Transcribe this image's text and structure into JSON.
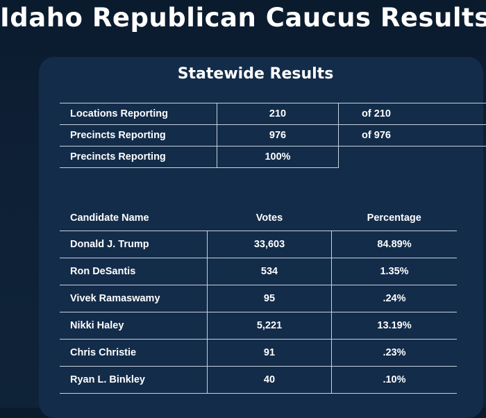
{
  "page_title": "Idaho Republican Caucus Results",
  "card_title": "Statewide Results",
  "reporting": [
    {
      "label": "Locations Reporting",
      "value": "210",
      "of": "of 210"
    },
    {
      "label": "Precincts Reporting",
      "value": "976",
      "of": "of 976"
    },
    {
      "label": "Precincts Reporting",
      "value": "100%",
      "of": ""
    }
  ],
  "candidates_header": {
    "name": "Candidate Name",
    "votes": "Votes",
    "percentage": "Percentage"
  },
  "candidates": [
    {
      "name": "Donald J. Trump",
      "votes": "33,603",
      "percentage": "84.89%"
    },
    {
      "name": "Ron DeSantis",
      "votes": "534",
      "percentage": "1.35%"
    },
    {
      "name": "Vivek Ramaswamy",
      "votes": "95",
      "percentage": ".24%"
    },
    {
      "name": "Nikki Haley",
      "votes": "5,221",
      "percentage": "13.19%"
    },
    {
      "name": "Chris Christie",
      "votes": "91",
      "percentage": ".23%"
    },
    {
      "name": "Ryan L. Binkley",
      "votes": "40",
      "percentage": ".10%"
    }
  ]
}
